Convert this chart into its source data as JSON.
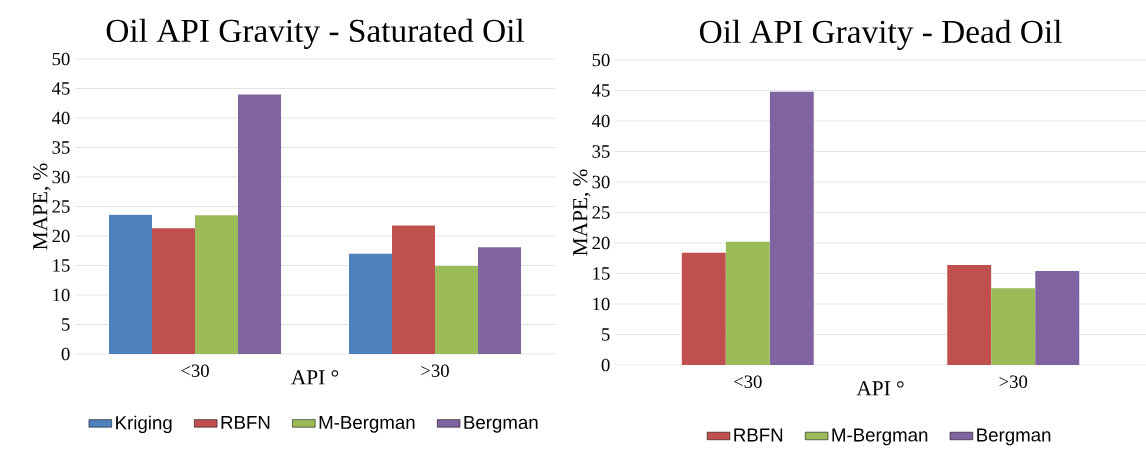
{
  "chart_data": [
    {
      "type": "bar",
      "title": "Oil API Gravity - Saturated Oil",
      "xlabel": "API °",
      "ylabel": "MAPE, %",
      "categories": [
        "<30",
        ">30"
      ],
      "series": [
        {
          "name": "Kriging",
          "color": "#4f81bd",
          "values": [
            23.6,
            17.0
          ]
        },
        {
          "name": "RBFN",
          "color": "#c0504d",
          "values": [
            21.3,
            21.8
          ]
        },
        {
          "name": "M-Bergman",
          "color": "#9bbb59",
          "values": [
            23.5,
            14.9
          ]
        },
        {
          "name": "Bergman",
          "color": "#8064a2",
          "values": [
            44.0,
            18.1
          ]
        }
      ],
      "ylim": [
        0,
        50
      ],
      "yticks": [
        0,
        5,
        10,
        15,
        20,
        25,
        30,
        35,
        40,
        45,
        50
      ],
      "grid": "y",
      "legend": "bottom"
    },
    {
      "type": "bar",
      "title": "Oil API Gravity - Dead Oil",
      "xlabel": "API °",
      "ylabel": "MAPE, %",
      "categories": [
        "<30",
        ">30"
      ],
      "series": [
        {
          "color": "#4f81bd",
          "values": [
            null,
            null
          ]
        },
        {
          "name": "RBFN",
          "color": "#c0504d",
          "values": [
            18.4,
            16.4
          ]
        },
        {
          "name": "M-Bergman",
          "color": "#9bbb59",
          "values": [
            20.2,
            12.6
          ]
        },
        {
          "name": "Bergman",
          "color": "#8064a2",
          "values": [
            44.8,
            15.4
          ]
        }
      ],
      "ylim": [
        0,
        50
      ],
      "yticks": [
        0,
        5,
        10,
        15,
        20,
        25,
        30,
        35,
        40,
        45,
        50
      ],
      "grid": "y",
      "legend": "bottom"
    }
  ]
}
